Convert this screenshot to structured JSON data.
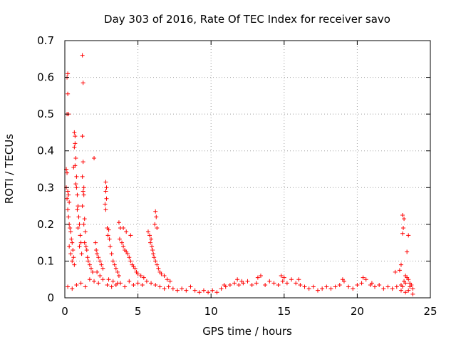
{
  "chart_data": {
    "type": "scatter",
    "title": "Day 303 of 2016, Rate Of TEC Index for receiver savo",
    "xlabel": "GPS time / hours",
    "ylabel": "ROTI / TECUs",
    "xlim": [
      0,
      25
    ],
    "ylim": [
      0,
      0.7
    ],
    "x_ticks": [
      0,
      5,
      10,
      15,
      20,
      25
    ],
    "y_ticks": [
      0,
      0.1,
      0.2,
      0.3,
      0.4,
      0.5,
      0.6,
      0.7
    ],
    "x_tick_labels": [
      "0",
      "5",
      "10",
      "15",
      "20",
      "25"
    ],
    "y_tick_labels": [
      "0",
      "0.1",
      "0.2",
      "0.3",
      "0.4",
      "0.5",
      "0.6",
      "0.7"
    ],
    "grid": true,
    "marker": "+",
    "color": "#ff0000",
    "series": [
      {
        "name": "ROTI",
        "points": [
          [
            0.1,
            0.35
          ],
          [
            0.15,
            0.34
          ],
          [
            0.1,
            0.3
          ],
          [
            0.2,
            0.29
          ],
          [
            0.25,
            0.28
          ],
          [
            0.15,
            0.27
          ],
          [
            0.3,
            0.26
          ],
          [
            0.2,
            0.24
          ],
          [
            0.25,
            0.22
          ],
          [
            0.3,
            0.2
          ],
          [
            0.35,
            0.19
          ],
          [
            0.4,
            0.18
          ],
          [
            0.45,
            0.16
          ],
          [
            0.5,
            0.15
          ],
          [
            0.3,
            0.14
          ],
          [
            0.55,
            0.13
          ],
          [
            0.4,
            0.12
          ],
          [
            0.6,
            0.11
          ],
          [
            0.5,
            0.1
          ],
          [
            0.65,
            0.09
          ],
          [
            0.2,
            0.61
          ],
          [
            0.15,
            0.6
          ],
          [
            0.2,
            0.555
          ],
          [
            0.15,
            0.5
          ],
          [
            0.25,
            0.5
          ],
          [
            0.65,
            0.45
          ],
          [
            0.7,
            0.44
          ],
          [
            0.7,
            0.42
          ],
          [
            0.65,
            0.41
          ],
          [
            0.75,
            0.38
          ],
          [
            0.7,
            0.36
          ],
          [
            0.6,
            0.355
          ],
          [
            0.8,
            0.33
          ],
          [
            0.75,
            0.31
          ],
          [
            0.8,
            0.3
          ],
          [
            0.85,
            0.28
          ],
          [
            0.9,
            0.25
          ],
          [
            0.85,
            0.24
          ],
          [
            0.95,
            0.22
          ],
          [
            1.0,
            0.2
          ],
          [
            0.9,
            0.19
          ],
          [
            1.05,
            0.17
          ],
          [
            1.1,
            0.15
          ],
          [
            1.0,
            0.14
          ],
          [
            1.15,
            0.12
          ],
          [
            1.2,
            0.66
          ],
          [
            1.25,
            0.585
          ],
          [
            1.2,
            0.44
          ],
          [
            1.25,
            0.37
          ],
          [
            1.2,
            0.33
          ],
          [
            1.3,
            0.3
          ],
          [
            1.25,
            0.29
          ],
          [
            1.3,
            0.28
          ],
          [
            1.2,
            0.25
          ],
          [
            1.35,
            0.215
          ],
          [
            1.3,
            0.2
          ],
          [
            1.4,
            0.18
          ],
          [
            1.35,
            0.15
          ],
          [
            1.45,
            0.14
          ],
          [
            1.5,
            0.13
          ],
          [
            1.55,
            0.11
          ],
          [
            1.6,
            0.1
          ],
          [
            1.7,
            0.09
          ],
          [
            1.8,
            0.08
          ],
          [
            1.9,
            0.07
          ],
          [
            2.0,
            0.38
          ],
          [
            2.1,
            0.15
          ],
          [
            2.15,
            0.13
          ],
          [
            2.2,
            0.12
          ],
          [
            2.3,
            0.11
          ],
          [
            2.4,
            0.1
          ],
          [
            2.5,
            0.09
          ],
          [
            2.6,
            0.08
          ],
          [
            2.2,
            0.07
          ],
          [
            2.4,
            0.06
          ],
          [
            2.8,
            0.315
          ],
          [
            2.85,
            0.3
          ],
          [
            2.8,
            0.29
          ],
          [
            2.85,
            0.27
          ],
          [
            2.75,
            0.255
          ],
          [
            2.8,
            0.24
          ],
          [
            2.9,
            0.19
          ],
          [
            3.0,
            0.185
          ],
          [
            2.95,
            0.17
          ],
          [
            3.05,
            0.16
          ],
          [
            3.1,
            0.14
          ],
          [
            3.2,
            0.12
          ],
          [
            3.3,
            0.1
          ],
          [
            3.4,
            0.09
          ],
          [
            3.5,
            0.08
          ],
          [
            3.6,
            0.07
          ],
          [
            3.7,
            0.06
          ],
          [
            3.0,
            0.05
          ],
          [
            3.3,
            0.045
          ],
          [
            3.6,
            0.04
          ],
          [
            3.7,
            0.205
          ],
          [
            3.8,
            0.19
          ],
          [
            3.75,
            0.16
          ],
          [
            3.9,
            0.15
          ],
          [
            4.0,
            0.14
          ],
          [
            4.1,
            0.13
          ],
          [
            4.2,
            0.125
          ],
          [
            4.3,
            0.12
          ],
          [
            4.4,
            0.11
          ],
          [
            4.5,
            0.1
          ],
          [
            4.6,
            0.09
          ],
          [
            4.7,
            0.085
          ],
          [
            4.8,
            0.08
          ],
          [
            4.9,
            0.07
          ],
          [
            5.0,
            0.065
          ],
          [
            4.5,
            0.17
          ],
          [
            4.2,
            0.18
          ],
          [
            4.0,
            0.19
          ],
          [
            5.2,
            0.06
          ],
          [
            5.4,
            0.055
          ],
          [
            5.7,
            0.18
          ],
          [
            5.8,
            0.17
          ],
          [
            5.9,
            0.16
          ],
          [
            5.85,
            0.15
          ],
          [
            5.95,
            0.14
          ],
          [
            6.0,
            0.13
          ],
          [
            6.05,
            0.12
          ],
          [
            6.1,
            0.11
          ],
          [
            6.2,
            0.1
          ],
          [
            6.3,
            0.09
          ],
          [
            6.2,
            0.235
          ],
          [
            6.25,
            0.22
          ],
          [
            6.15,
            0.2
          ],
          [
            6.3,
            0.19
          ],
          [
            6.4,
            0.08
          ],
          [
            6.5,
            0.07
          ],
          [
            6.6,
            0.065
          ],
          [
            6.8,
            0.06
          ],
          [
            7.0,
            0.05
          ],
          [
            7.2,
            0.045
          ],
          [
            0.2,
            0.03
          ],
          [
            0.5,
            0.025
          ],
          [
            0.8,
            0.035
          ],
          [
            1.1,
            0.04
          ],
          [
            1.4,
            0.03
          ],
          [
            1.7,
            0.05
          ],
          [
            2.0,
            0.045
          ],
          [
            2.3,
            0.04
          ],
          [
            2.6,
            0.05
          ],
          [
            2.9,
            0.035
          ],
          [
            3.2,
            0.03
          ],
          [
            3.5,
            0.035
          ],
          [
            3.8,
            0.04
          ],
          [
            4.1,
            0.03
          ],
          [
            4.4,
            0.045
          ],
          [
            4.7,
            0.035
          ],
          [
            5.0,
            0.04
          ],
          [
            5.3,
            0.035
          ],
          [
            5.6,
            0.045
          ],
          [
            5.9,
            0.04
          ],
          [
            6.2,
            0.035
          ],
          [
            6.5,
            0.03
          ],
          [
            6.8,
            0.025
          ],
          [
            7.1,
            0.03
          ],
          [
            7.4,
            0.025
          ],
          [
            7.7,
            0.02
          ],
          [
            8.0,
            0.025
          ],
          [
            8.3,
            0.02
          ],
          [
            8.6,
            0.03
          ],
          [
            8.9,
            0.02
          ],
          [
            9.2,
            0.015
          ],
          [
            9.5,
            0.02
          ],
          [
            9.8,
            0.015
          ],
          [
            10.1,
            0.02
          ],
          [
            10.4,
            0.015
          ],
          [
            10.7,
            0.025
          ],
          [
            11.0,
            0.03
          ],
          [
            11.3,
            0.035
          ],
          [
            11.6,
            0.04
          ],
          [
            11.9,
            0.035
          ],
          [
            12.2,
            0.04
          ],
          [
            12.5,
            0.045
          ],
          [
            12.8,
            0.035
          ],
          [
            13.1,
            0.04
          ],
          [
            13.4,
            0.06
          ],
          [
            13.7,
            0.035
          ],
          [
            14.0,
            0.045
          ],
          [
            14.3,
            0.04
          ],
          [
            14.6,
            0.035
          ],
          [
            14.9,
            0.045
          ],
          [
            15.2,
            0.04
          ],
          [
            15.5,
            0.05
          ],
          [
            15.8,
            0.04
          ],
          [
            16.1,
            0.035
          ],
          [
            16.4,
            0.03
          ],
          [
            16.7,
            0.025
          ],
          [
            17.0,
            0.03
          ],
          [
            17.3,
            0.02
          ],
          [
            17.6,
            0.025
          ],
          [
            17.9,
            0.03
          ],
          [
            18.2,
            0.025
          ],
          [
            18.5,
            0.03
          ],
          [
            18.8,
            0.035
          ],
          [
            19.1,
            0.045
          ],
          [
            19.4,
            0.03
          ],
          [
            19.7,
            0.025
          ],
          [
            20.0,
            0.035
          ],
          [
            20.3,
            0.04
          ],
          [
            20.6,
            0.05
          ],
          [
            20.9,
            0.035
          ],
          [
            21.2,
            0.03
          ],
          [
            21.5,
            0.035
          ],
          [
            21.8,
            0.025
          ],
          [
            22.1,
            0.03
          ],
          [
            22.4,
            0.025
          ],
          [
            22.7,
            0.03
          ],
          [
            23.0,
            0.035
          ],
          [
            23.3,
            0.04
          ],
          [
            23.6,
            0.03
          ],
          [
            23.8,
            0.025
          ],
          [
            13.2,
            0.055
          ],
          [
            11.8,
            0.05
          ],
          [
            12.1,
            0.045
          ],
          [
            15.0,
            0.055
          ],
          [
            16.0,
            0.05
          ],
          [
            20.4,
            0.055
          ],
          [
            14.8,
            0.06
          ],
          [
            19.0,
            0.05
          ],
          [
            21.0,
            0.04
          ],
          [
            10.9,
            0.035
          ],
          [
            23.1,
            0.225
          ],
          [
            23.2,
            0.215
          ],
          [
            23.15,
            0.19
          ],
          [
            23.1,
            0.175
          ],
          [
            23.5,
            0.17
          ],
          [
            23.4,
            0.125
          ],
          [
            23.0,
            0.09
          ],
          [
            22.9,
            0.075
          ],
          [
            22.6,
            0.07
          ],
          [
            23.3,
            0.06
          ],
          [
            23.4,
            0.055
          ],
          [
            23.5,
            0.05
          ],
          [
            23.2,
            0.045
          ],
          [
            23.6,
            0.04
          ],
          [
            23.7,
            0.035
          ],
          [
            23.1,
            0.03
          ],
          [
            23.5,
            0.02
          ],
          [
            23.3,
            0.015
          ],
          [
            23.8,
            0.01
          ],
          [
            23.0,
            0.02
          ]
        ]
      }
    ]
  }
}
